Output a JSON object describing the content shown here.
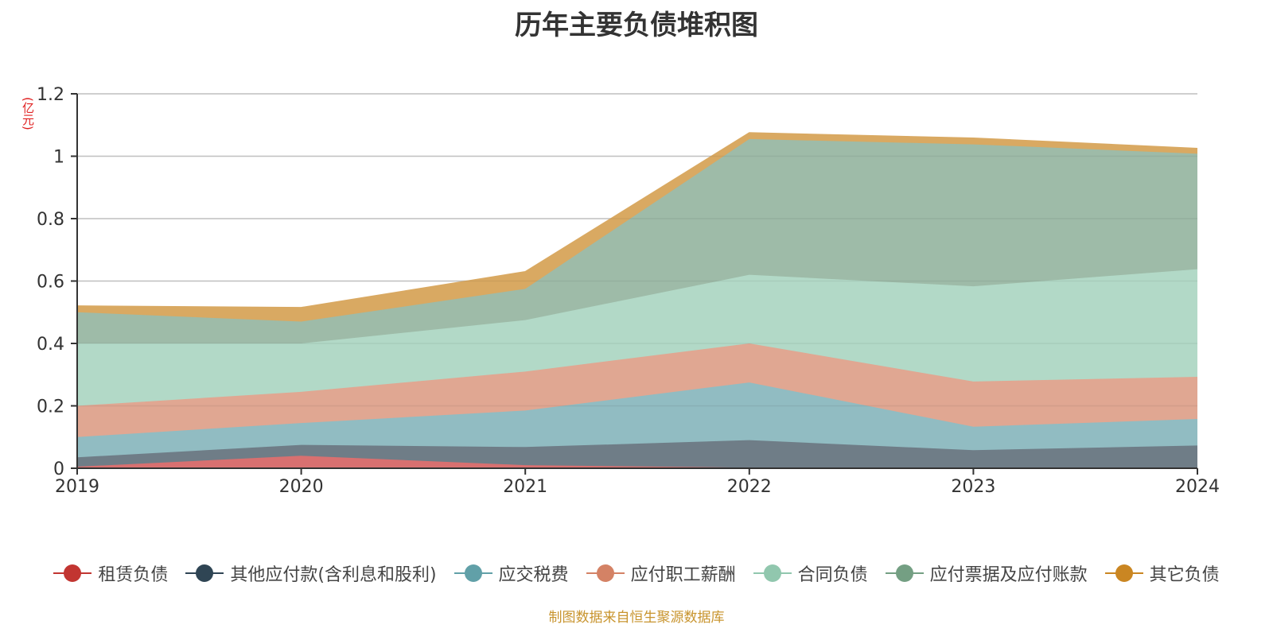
{
  "chart_data": {
    "type": "area",
    "stacked": true,
    "title": "历年主要负债堆积图",
    "ylabel": "(亿元)",
    "xlabel": "",
    "ylim": [
      0,
      1.2
    ],
    "yticks": [
      "0",
      "0.2",
      "0.4",
      "0.6",
      "0.8",
      "1",
      "1.2"
    ],
    "ytick_values": [
      0,
      0.2,
      0.4,
      0.6,
      0.8,
      1.0,
      1.2
    ],
    "categories": [
      "2019",
      "2020",
      "2021",
      "2022",
      "2023",
      "2024"
    ],
    "grid": true,
    "legend_position": "bottom",
    "series": [
      {
        "name": "租赁负债",
        "color": "#c23531",
        "fill": "#d87070",
        "values": [
          0.005,
          0.04,
          0.01,
          0.002,
          0.001,
          0.001
        ]
      },
      {
        "name": "其他应付款(含利息和股利)",
        "color": "#2f4554",
        "fill": "#6f7d87",
        "values": [
          0.03,
          0.035,
          0.058,
          0.088,
          0.057,
          0.072
        ]
      },
      {
        "name": "应交税费",
        "color": "#61a0a8",
        "fill": "#91bcc2",
        "values": [
          0.065,
          0.07,
          0.117,
          0.185,
          0.075,
          0.085
        ]
      },
      {
        "name": "应付职工薪酬",
        "color": "#d48265",
        "fill": "#e0a792",
        "values": [
          0.1,
          0.1,
          0.125,
          0.125,
          0.145,
          0.135
        ]
      },
      {
        "name": "合同负债",
        "color": "#91c7ae",
        "fill": "#b2d9c7",
        "values": [
          0.2,
          0.155,
          0.165,
          0.22,
          0.305,
          0.345
        ]
      },
      {
        "name": "应付票据及应付账款",
        "color": "#749f83",
        "fill": "#9ebba8",
        "values": [
          0.1,
          0.07,
          0.1,
          0.435,
          0.455,
          0.37
        ]
      },
      {
        "name": "其它负债",
        "color": "#ca8622",
        "fill": "#d9a962",
        "values": [
          0.02,
          0.045,
          0.055,
          0.02,
          0.02,
          0.017
        ]
      }
    ]
  },
  "source_note": "制图数据来自恒生聚源数据库"
}
